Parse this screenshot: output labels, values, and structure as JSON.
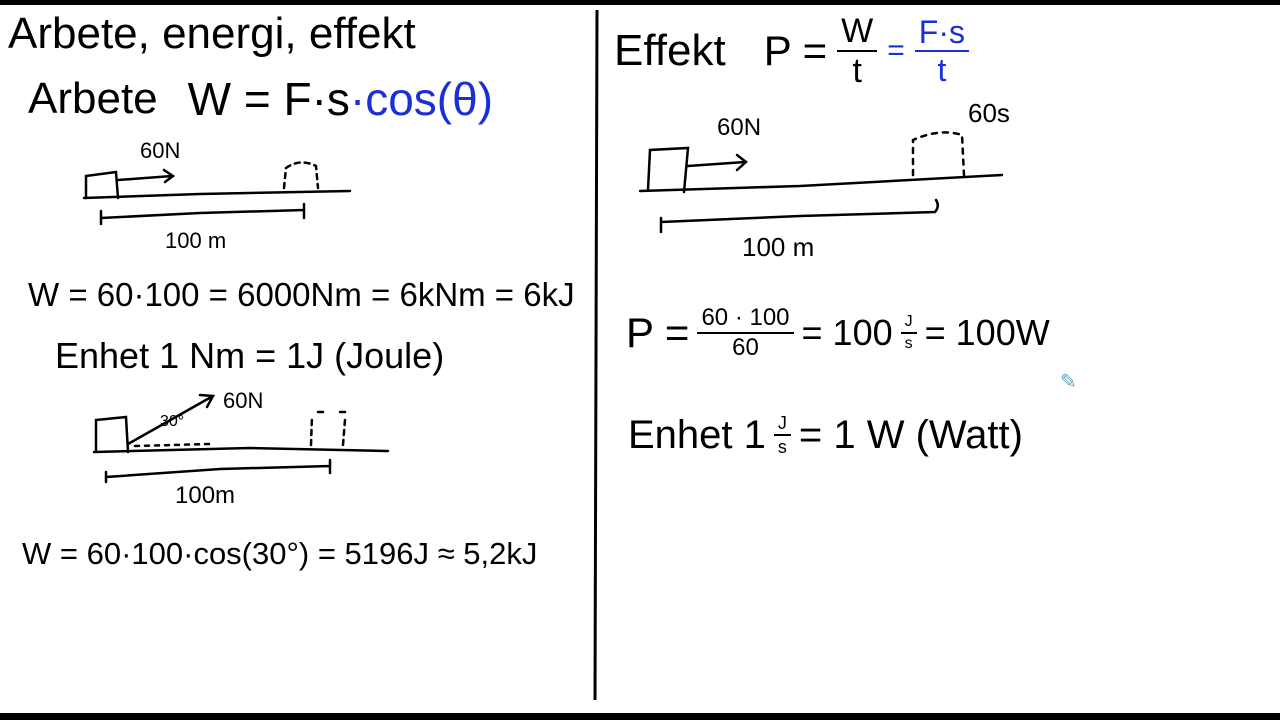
{
  "title": "Arbete, energi, effekt",
  "colors": {
    "ink": "#000000",
    "accent": "#1a2fd6",
    "frame": "#000000"
  },
  "left": {
    "arbete_label": "Arbete",
    "formula_main": "W = F·s",
    "formula_cos": "·cos(θ)",
    "diagram1": {
      "force": "60N",
      "distance": "100 m"
    },
    "calc1": "W = 60·100 = 6000Nm = 6kNm = 6kJ",
    "unit_line": "Enhet  1 Nm = 1J (Joule)",
    "diagram2": {
      "force": "60N",
      "angle": "30°",
      "distance": "100m"
    },
    "calc2": "W = 60·100·cos(30°) = 5196J ≈ 5,2kJ"
  },
  "right": {
    "effekt_label": "Effekt",
    "formula_p": "P =",
    "formula_num": "W",
    "formula_den": "t",
    "formula_eq2": "=",
    "formula_blue_num": "F·s",
    "formula_blue_den": "t",
    "diagram3": {
      "force": "60N",
      "time": "60s",
      "distance": "100 m"
    },
    "calc_p": "P =",
    "calc_num": "60 · 100",
    "calc_den": "60",
    "calc_eq1": "= 100",
    "calc_unit_num": "J",
    "calc_unit_den": "s",
    "calc_eq2": "= 100W",
    "unit_prefix": "Enhet  1",
    "unit_num": "J",
    "unit_den": "s",
    "unit_suffix": "= 1 W (Watt)"
  },
  "tool": {
    "icon": "pencil-icon"
  }
}
